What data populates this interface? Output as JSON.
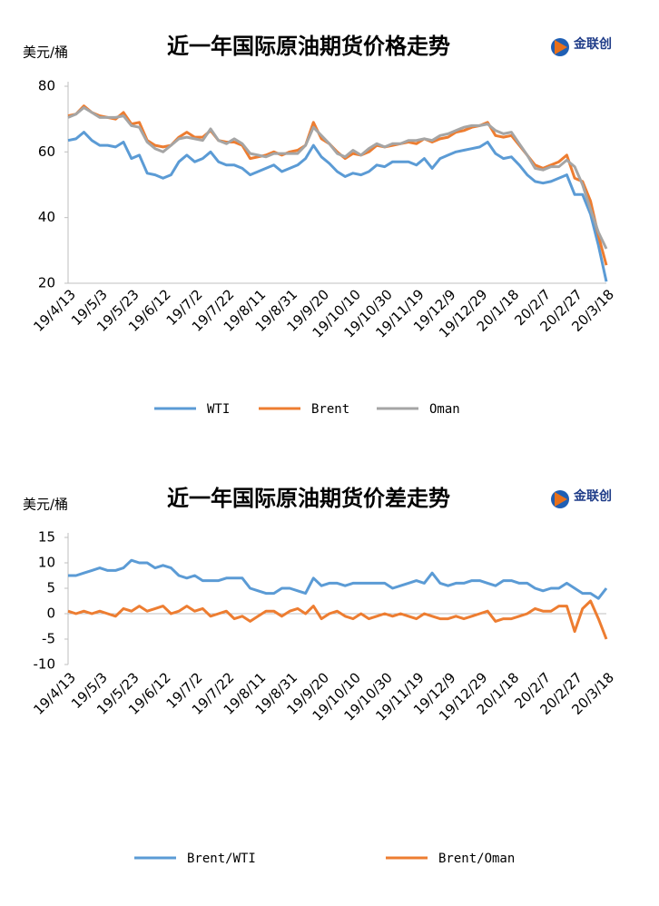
{
  "chart_data": [
    {
      "type": "line",
      "title": "近一年国际原油期货价格走势",
      "y_label": "美元/桶",
      "logo": "金联创",
      "categories": [
        "19/4/13",
        null,
        null,
        null,
        "19/5/3",
        null,
        null,
        null,
        "19/5/23",
        null,
        null,
        null,
        "19/6/12",
        null,
        null,
        null,
        "19/7/2",
        null,
        null,
        null,
        "19/7/22",
        null,
        null,
        null,
        "19/8/11",
        null,
        null,
        null,
        "19/8/31",
        null,
        null,
        null,
        "19/9/20",
        null,
        null,
        null,
        "19/10/10",
        null,
        null,
        null,
        "19/10/30",
        null,
        null,
        null,
        "19/11/19",
        null,
        null,
        null,
        "19/12/9",
        null,
        null,
        null,
        "19/12/29",
        null,
        null,
        null,
        "20/1/18",
        null,
        null,
        null,
        "20/2/7",
        null,
        null,
        null,
        "20/2/27",
        null,
        null,
        null,
        "20/3/18"
      ],
      "series": [
        {
          "name": "WTI",
          "color": "#5b9bd5",
          "values": [
            63.5,
            64,
            66,
            63.5,
            62,
            62,
            61.5,
            63,
            58,
            59,
            53.5,
            53,
            52,
            53,
            57,
            59,
            57,
            58,
            60,
            57,
            56,
            56,
            55,
            53,
            54,
            55,
            56,
            54,
            55,
            56,
            58,
            62,
            58.5,
            56.5,
            54,
            52.5,
            53.5,
            53,
            54,
            56,
            55.5,
            57,
            57,
            57,
            56,
            58,
            55,
            58,
            59,
            60,
            60.5,
            61,
            61.5,
            63,
            59.5,
            58,
            58.5,
            56,
            53,
            51,
            50.5,
            51,
            52,
            53,
            47,
            47,
            41,
            31.5,
            20.5
          ]
        },
        {
          "name": "Brent",
          "color": "#ed7d31",
          "values": [
            71,
            71.5,
            74,
            72,
            71,
            70.5,
            70,
            72,
            68.5,
            69,
            63.5,
            62,
            61.5,
            62,
            64.5,
            66,
            64.5,
            64.5,
            66.5,
            63.5,
            63,
            63,
            62,
            58,
            58.5,
            59,
            60,
            59,
            60,
            60.5,
            62,
            69,
            64,
            62.5,
            60,
            58,
            59.5,
            59,
            60,
            62,
            61.5,
            62,
            62.5,
            63,
            62.5,
            64,
            63,
            64,
            64.5,
            66,
            66.5,
            67.5,
            68,
            69,
            65,
            64.5,
            65,
            62,
            59,
            56,
            55,
            56,
            57,
            59,
            52,
            51,
            45,
            34.5,
            25.5
          ]
        },
        {
          "name": "Oman",
          "color": "#a5a5a5",
          "values": [
            70.5,
            71.5,
            73.5,
            72,
            70.5,
            70.5,
            70.5,
            71,
            68,
            67.5,
            63,
            61,
            60,
            62,
            64,
            64.5,
            64,
            63.5,
            67,
            63.5,
            62.5,
            64,
            62.5,
            59.5,
            59,
            58.5,
            59.5,
            59.5,
            59.5,
            59.5,
            62,
            67.5,
            65,
            62.5,
            59.5,
            58.5,
            60.5,
            59,
            61,
            62.5,
            61.5,
            62.5,
            62.5,
            63.5,
            63.5,
            64,
            63.5,
            65,
            65.5,
            66.5,
            67.5,
            68,
            68,
            68.5,
            66.5,
            65.5,
            66,
            62.5,
            59,
            55,
            54.5,
            55.5,
            55.5,
            57.5,
            55.5,
            50,
            42.5,
            35.5,
            30.5
          ]
        }
      ],
      "ylim": [
        20,
        80
      ],
      "yticks": [
        20,
        40,
        60,
        80
      ]
    },
    {
      "type": "line",
      "title": "近一年国际原油期货价差走势",
      "y_label": "美元/桶",
      "logo": "金联创",
      "categories": [
        "19/4/13",
        null,
        null,
        null,
        "19/5/3",
        null,
        null,
        null,
        "19/5/23",
        null,
        null,
        null,
        "19/6/12",
        null,
        null,
        null,
        "19/7/2",
        null,
        null,
        null,
        "19/7/22",
        null,
        null,
        null,
        "19/8/11",
        null,
        null,
        null,
        "19/8/31",
        null,
        null,
        null,
        "19/9/20",
        null,
        null,
        null,
        "19/10/10",
        null,
        null,
        null,
        "19/10/30",
        null,
        null,
        null,
        "19/11/19",
        null,
        null,
        null,
        "19/12/9",
        null,
        null,
        null,
        "19/12/29",
        null,
        null,
        null,
        "20/1/18",
        null,
        null,
        null,
        "20/2/7",
        null,
        null,
        null,
        "20/2/27",
        null,
        null,
        null,
        "20/3/18"
      ],
      "series": [
        {
          "name": "Brent/WTI",
          "color": "#5b9bd5",
          "values": [
            7.5,
            7.5,
            8,
            8.5,
            9,
            8.5,
            8.5,
            9,
            10.5,
            10,
            10,
            9,
            9.5,
            9,
            7.5,
            7,
            7.5,
            6.5,
            6.5,
            6.5,
            7,
            7,
            7,
            5,
            4.5,
            4,
            4,
            5,
            5,
            4.5,
            4,
            7,
            5.5,
            6,
            6,
            5.5,
            6,
            6,
            6,
            6,
            6,
            5,
            5.5,
            6,
            6.5,
            6,
            8,
            6,
            5.5,
            6,
            6,
            6.5,
            6.5,
            6,
            5.5,
            6.5,
            6.5,
            6,
            6,
            5,
            4.5,
            5,
            5,
            6,
            5,
            4,
            4,
            3,
            5
          ]
        },
        {
          "name": "Brent/Oman",
          "color": "#ed7d31",
          "values": [
            0.5,
            0,
            0.5,
            0,
            0.5,
            0,
            -0.5,
            1,
            0.5,
            1.5,
            0.5,
            1,
            1.5,
            0,
            0.5,
            1.5,
            0.5,
            1,
            -0.5,
            0,
            0.5,
            -1,
            -0.5,
            -1.5,
            -0.5,
            0.5,
            0.5,
            -0.5,
            0.5,
            1,
            0,
            1.5,
            -1,
            0,
            0.5,
            -0.5,
            -1,
            0,
            -1,
            -0.5,
            0,
            -0.5,
            0,
            -0.5,
            -1,
            0,
            -0.5,
            -1,
            -1,
            -0.5,
            -1,
            -0.5,
            0,
            0.5,
            -1.5,
            -1,
            -1,
            -0.5,
            0,
            1,
            0.5,
            0.5,
            1.5,
            1.5,
            -3.5,
            1,
            2.5,
            -1,
            -5
          ]
        }
      ],
      "ylim": [
        -10,
        15
      ],
      "yticks": [
        -10,
        -5,
        0,
        5,
        10,
        15
      ]
    }
  ]
}
